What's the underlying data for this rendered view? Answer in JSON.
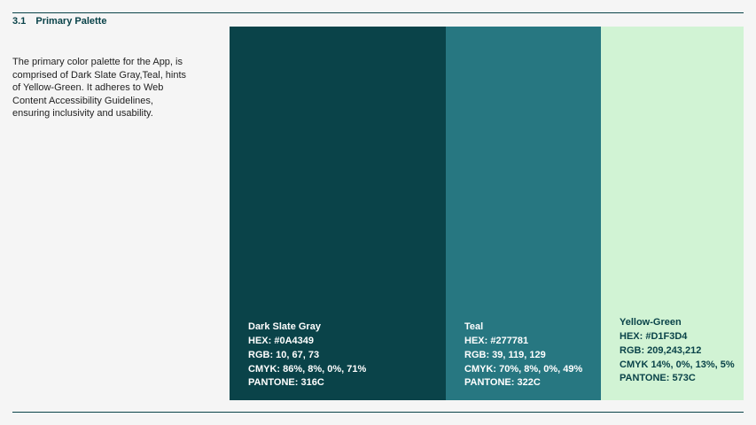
{
  "section": {
    "number": "3.1",
    "title": "Primary Palette"
  },
  "description": "The primary color palette for the App, is comprised of Dark Slate Gray,Teal, hints of Yellow-Green. It adheres to Web Content Accessibility Guidelines, ensuring inclusivity and usability.",
  "colors": {
    "accent": "#0A4349",
    "background": "#F5F5F5"
  },
  "swatches": [
    {
      "name": "Dark Slate Gray",
      "hex": "HEX: #0A4349",
      "rgb": "RGB: 10, 67, 73",
      "cmyk": "CMYK: 86%, 8%, 0%, 71%",
      "pantone": "PANTONE: 316C",
      "fill": "#0A4349",
      "text_color": "#ffffff"
    },
    {
      "name": "Teal",
      "hex": "HEX: #277781",
      "rgb": "RGB: 39, 119, 129",
      "cmyk": "CMYK: 70%, 8%, 0%, 49%",
      "pantone": "PANTONE: 322C",
      "fill": "#277781",
      "text_color": "#ffffff"
    },
    {
      "name": "Yellow-Green",
      "hex": "HEX: #D1F3D4",
      "rgb": "RGB: 209,243,212",
      "cmyk": "CMYK 14%, 0%, 13%, 5%",
      "pantone": "PANTONE: 573C",
      "fill": "#D1F3D4",
      "text_color": "#0A4349"
    }
  ]
}
